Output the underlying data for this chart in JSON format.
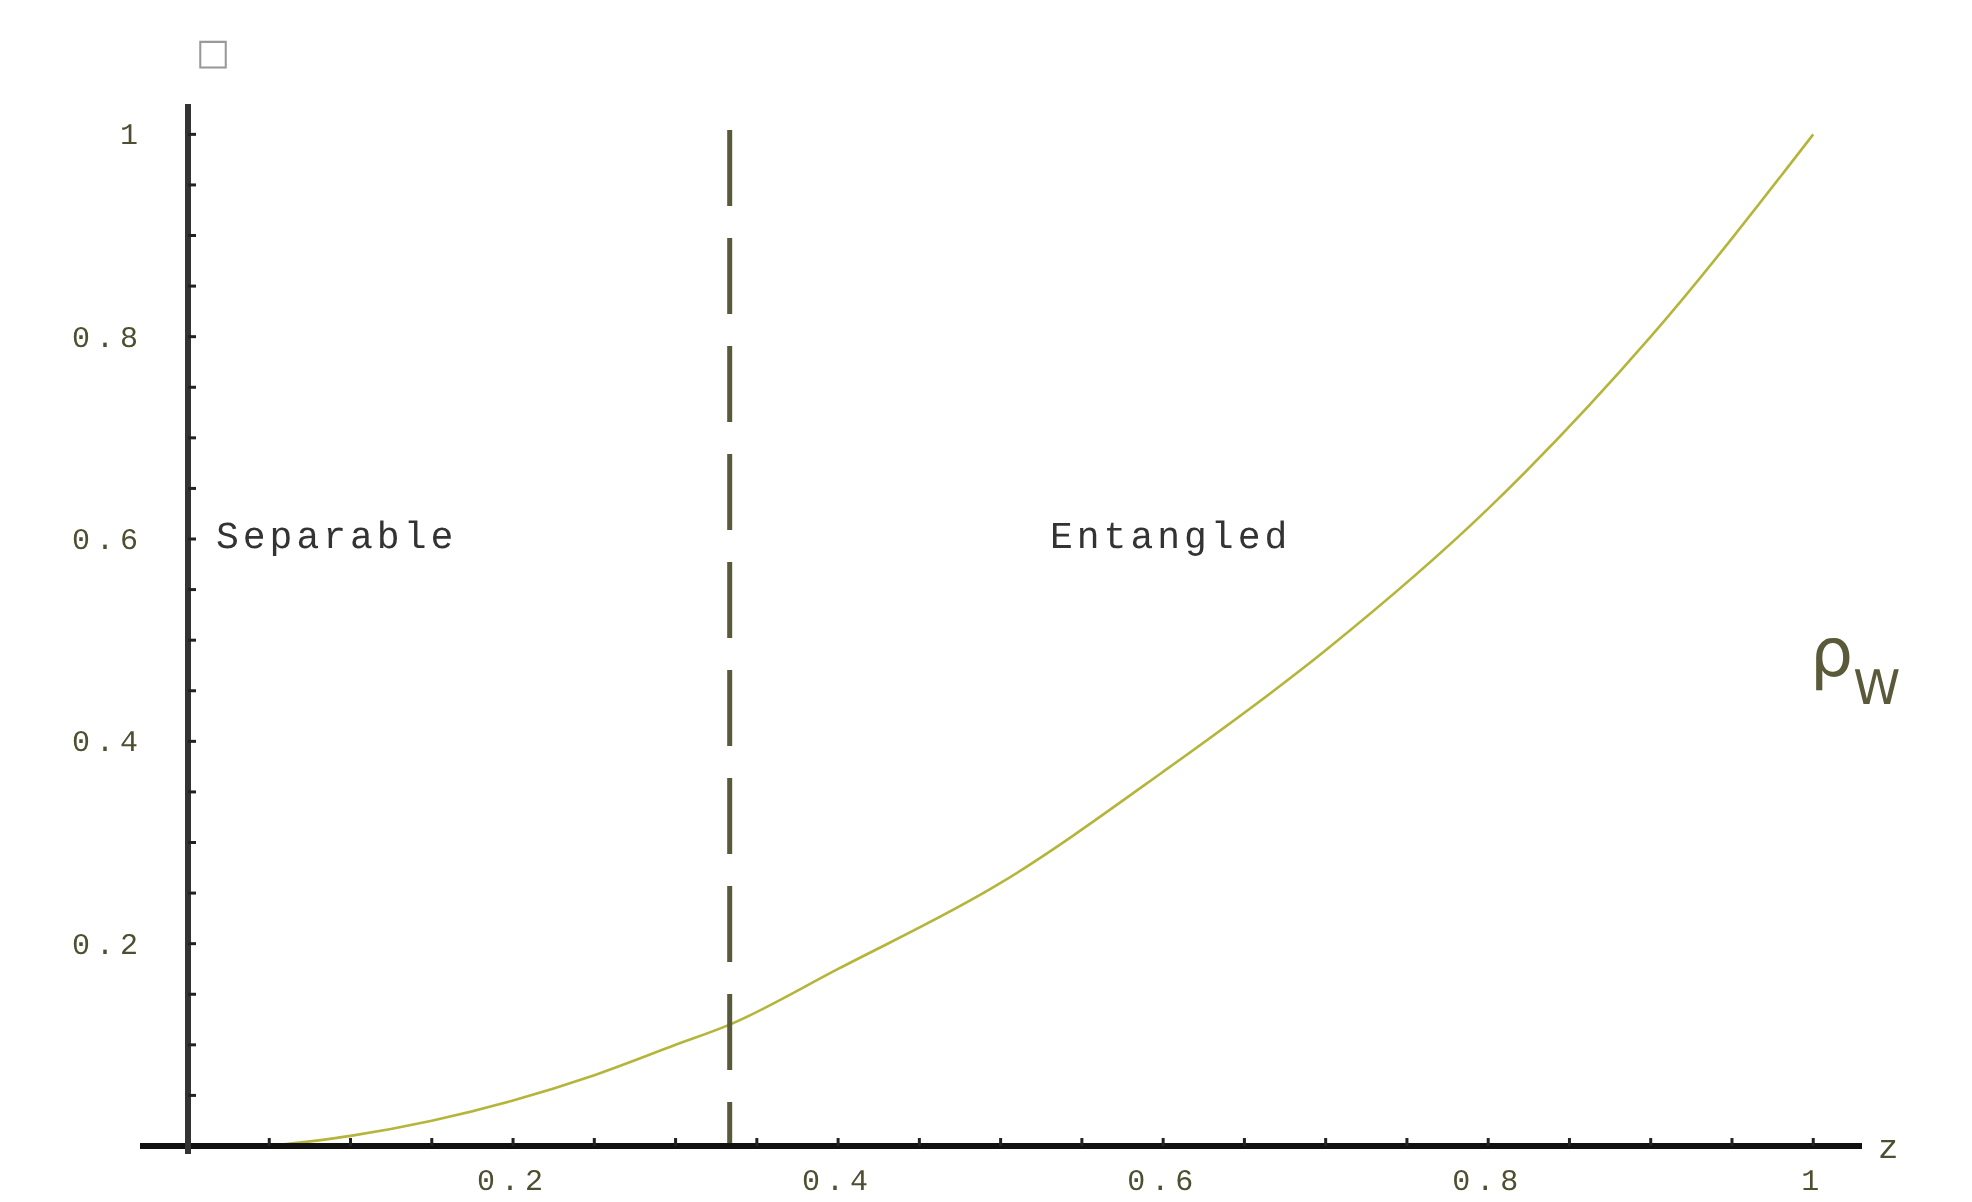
{
  "chart_data": {
    "type": "line",
    "xlabel": "z",
    "ylabel": "□",
    "x": [
      0.05,
      0.1,
      0.15,
      0.2,
      0.25,
      0.3,
      0.3333,
      0.4,
      0.5,
      0.6,
      0.7,
      0.8,
      0.9,
      1
    ],
    "series": [
      {
        "color": "#b5b53c",
        "values": [
          0,
          0.01,
          0.025,
          0.045,
          0.07,
          0.1,
          0.12,
          0.175,
          0.26,
          0.37,
          0.49,
          0.63,
          0.8,
          1
        ]
      }
    ],
    "xlim": [
      0,
      1.03
    ],
    "ylim": [
      0,
      1.03
    ],
    "xticks": [
      {
        "value": 0.05,
        "label": null
      },
      {
        "value": 0.1,
        "label": null
      },
      {
        "value": 0.15,
        "label": null
      },
      0.2,
      {
        "value": 0.25,
        "label": null
      },
      {
        "value": 0.3,
        "label": null
      },
      {
        "value": 0.35,
        "label": null
      },
      0.4,
      {
        "value": 0.45,
        "label": null
      },
      {
        "value": 0.5,
        "label": null
      },
      {
        "value": 0.55,
        "label": null
      },
      0.6,
      {
        "value": 0.65,
        "label": null
      },
      {
        "value": 0.7,
        "label": null
      },
      {
        "value": 0.75,
        "label": null
      },
      0.8,
      {
        "value": 0.85,
        "label": null
      },
      {
        "value": 0.9,
        "label": null
      },
      {
        "value": 0.95,
        "label": null
      },
      1
    ],
    "yticks": [
      {
        "value": 0.05,
        "label": null
      },
      {
        "value": 0.1,
        "label": null
      },
      {
        "value": 0.15,
        "label": null
      },
      0.2,
      {
        "value": 0.25,
        "label": null
      },
      {
        "value": 0.3,
        "label": null
      },
      {
        "value": 0.35,
        "label": null
      },
      0.4,
      {
        "value": 0.45,
        "label": null
      },
      {
        "value": 0.5,
        "label": null
      },
      {
        "value": 0.55,
        "label": null
      },
      0.6,
      {
        "value": 0.65,
        "label": null
      },
      {
        "value": 0.7,
        "label": null
      },
      {
        "value": 0.75,
        "label": null
      },
      0.8,
      {
        "value": 0.85,
        "label": null
      },
      {
        "value": 0.9,
        "label": null
      },
      {
        "value": 0.95,
        "label": null
      },
      1
    ],
    "ref_lines": [
      {
        "axis": "x",
        "value": 0.3333,
        "color": "#5a5a3a",
        "line_style": "dashed"
      }
    ],
    "annotations": [
      "Separable",
      "Entangled",
      "ρ$_{W}$"
    ],
    "grid": false,
    "marker": "none",
    "line_style": "solid"
  }
}
